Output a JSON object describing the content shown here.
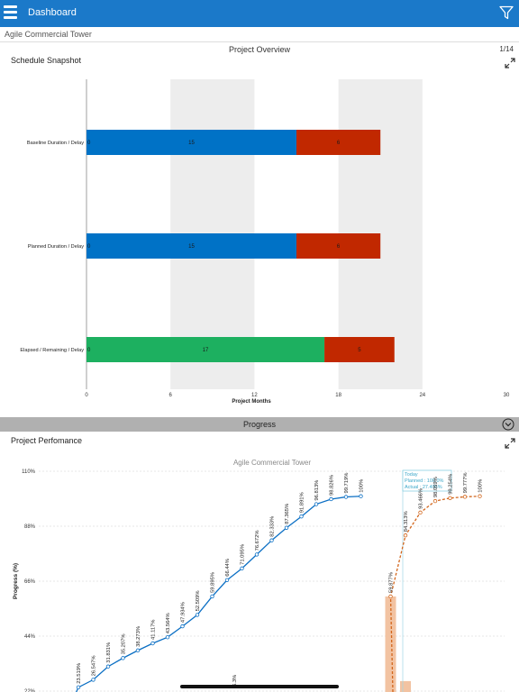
{
  "header": {
    "title": "Dashboard",
    "menu_icon": "hamburger-icon",
    "filter_icon": "filter-icon",
    "color": "#1b79c9"
  },
  "project": {
    "name": "Agile Commercial Tower"
  },
  "overview": {
    "title": "Project Overview",
    "page": "1/14"
  },
  "schedule": {
    "title": "Schedule Snapshot",
    "xlabel": "Project Months"
  },
  "progress_section": {
    "label": "Progress"
  },
  "performance": {
    "title": "Project Perfomance",
    "chart_title": "Agile Commercial Tower"
  },
  "today_tooltip": {
    "title": "Today",
    "planned": "Planned : 100.0%",
    "actual": "Actual : 27.405%"
  },
  "chart_data": [
    {
      "type": "bar",
      "orientation": "horizontal",
      "stacked": true,
      "xlabel": "Project Months",
      "xlim": [
        0,
        30
      ],
      "xticks": [
        0,
        6,
        12,
        18,
        24,
        30
      ],
      "categories": [
        "Baseline Duration / Delay",
        "Planned Duration / Delay",
        "Elapsed / Remaining / Delay"
      ],
      "series": [
        {
          "color": "#0072c6",
          "values": [
            15,
            15,
            0
          ],
          "labels": [
            "15",
            "15",
            ""
          ]
        },
        {
          "color": "#1db060",
          "values": [
            0,
            0,
            17
          ],
          "labels": [
            "",
            "",
            "17"
          ]
        },
        {
          "color": "#c12800",
          "values": [
            6,
            6,
            5
          ],
          "labels": [
            "6",
            "6",
            "5"
          ]
        }
      ],
      "start_labels": [
        "0",
        "0",
        "0"
      ]
    },
    {
      "type": "line",
      "title": "Agile Commercial Tower",
      "ylabel": "Progress (%)",
      "yticks": [
        "22%",
        "44%",
        "66%",
        "88%",
        "110%"
      ],
      "ylim": [
        22,
        110
      ],
      "series": [
        {
          "name": "Planned",
          "color": "#0b6fc4",
          "style": "solid",
          "points": [
            {
              "p": 0,
              "y": 9.562,
              "label": "9.562%"
            },
            {
              "p": 1,
              "y": 23.519,
              "label": "23.519%"
            },
            {
              "p": 2,
              "y": 26.547,
              "label": "26.547%"
            },
            {
              "p": 3,
              "y": 31.831,
              "label": "31.831%"
            },
            {
              "p": 4,
              "y": 35.207,
              "label": "35.207%"
            },
            {
              "p": 5,
              "y": 38.273,
              "label": "38.273%"
            },
            {
              "p": 6,
              "y": 41.117,
              "label": "41.117%"
            },
            {
              "p": 7,
              "y": 43.564,
              "label": "43.564%"
            },
            {
              "p": 8,
              "y": 47.934,
              "label": "47.934%"
            },
            {
              "p": 9,
              "y": 52.509,
              "label": "52.509%"
            },
            {
              "p": 10,
              "y": 59.895,
              "label": "59.895%"
            },
            {
              "p": 11,
              "y": 66.44,
              "label": "66.44%"
            },
            {
              "p": 12,
              "y": 71.095,
              "label": "71.095%"
            },
            {
              "p": 13,
              "y": 76.672,
              "label": "76.672%"
            },
            {
              "p": 14,
              "y": 82.333,
              "label": "82.333%"
            },
            {
              "p": 15,
              "y": 87.365,
              "label": "87.365%"
            },
            {
              "p": 16,
              "y": 91.891,
              "label": "91.891%"
            },
            {
              "p": 17,
              "y": 96.813,
              "label": "96.813%"
            },
            {
              "p": 18,
              "y": 98.826,
              "label": "98.826%"
            },
            {
              "p": 19,
              "y": 99.719,
              "label": "99.719%"
            },
            {
              "p": 20,
              "y": 100,
              "label": "100%"
            }
          ]
        },
        {
          "name": "Actual",
          "color": "#d2661c",
          "style": "dashed",
          "points": [
            {
              "p": 22,
              "y": 59.877,
              "label": "59.877%"
            },
            {
              "p": 23,
              "y": 84.313,
              "label": "84.313%"
            },
            {
              "p": 24,
              "y": 93.466,
              "label": "93.466%"
            },
            {
              "p": 25,
              "y": 98.059,
              "label": "98.059%"
            },
            {
              "p": 26,
              "y": 99.254,
              "label": "99.254%"
            },
            {
              "p": 27,
              "y": 99.777,
              "label": "99.777%"
            },
            {
              "p": 28,
              "y": 100,
              "label": "100%"
            }
          ]
        }
      ],
      "bars": [
        {
          "p": 22,
          "y": 59.877,
          "color": "#f2c3a2"
        },
        {
          "p": 23,
          "y": 26,
          "color": "#f2c3a2"
        }
      ],
      "extra_labels": [
        "6.3%"
      ]
    }
  ]
}
